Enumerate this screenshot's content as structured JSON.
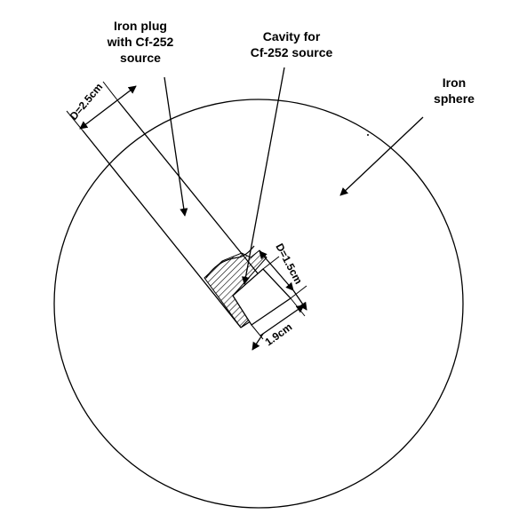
{
  "labels": {
    "iron_plug": "Iron plug\nwith Cf-252\nsource",
    "cavity": "Cavity for\nCf-252 source",
    "iron_sphere": "Iron\nsphere"
  },
  "dimensions": {
    "plug_diameter": "D=2.5cm",
    "cavity_diameter": "D=1.5cm",
    "cavity_depth": "1.9cm"
  },
  "colors": {
    "ink": "#000000",
    "background": "#ffffff"
  }
}
